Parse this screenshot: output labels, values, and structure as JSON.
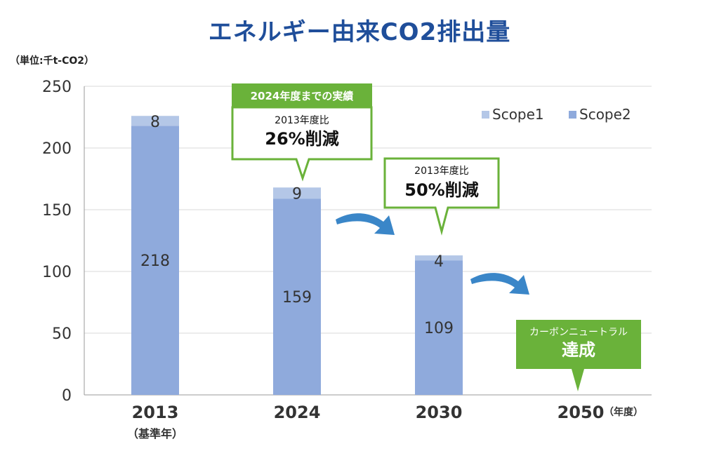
{
  "title": "エネルギー由来CO2排出量",
  "unit_label": "（単位:千t-CO2）",
  "xaxis_suffix": "（年度）",
  "colors": {
    "scope1": "#b4c7e7",
    "scope2": "#8faadc",
    "callout_green": "#6ab23a",
    "arrow_blue": "#3a86c8",
    "title_blue": "#1f4e9a"
  },
  "chart_data": {
    "type": "bar",
    "stacked": true,
    "categories": [
      "2013",
      "2024",
      "2030",
      "2050"
    ],
    "category_sublabels": [
      "（基準年）",
      "",
      "",
      ""
    ],
    "series": [
      {
        "name": "Scope2",
        "values": [
          218,
          159,
          109,
          null
        ]
      },
      {
        "name": "Scope1",
        "values": [
          8,
          9,
          4,
          null
        ]
      }
    ],
    "ylim": [
      0,
      250
    ],
    "yticks": [
      0,
      50,
      100,
      150,
      200,
      250
    ],
    "grid": true,
    "legend_position": "top-right"
  },
  "callouts": {
    "c2024": {
      "header": "2024年度までの実績",
      "line1": "2013年度比",
      "line2": "26%削減"
    },
    "c2030": {
      "line1": "2013年度比",
      "line2": "50%削減"
    },
    "c2050": {
      "line1": "カーボンニュートラル",
      "line2": "達成"
    }
  }
}
